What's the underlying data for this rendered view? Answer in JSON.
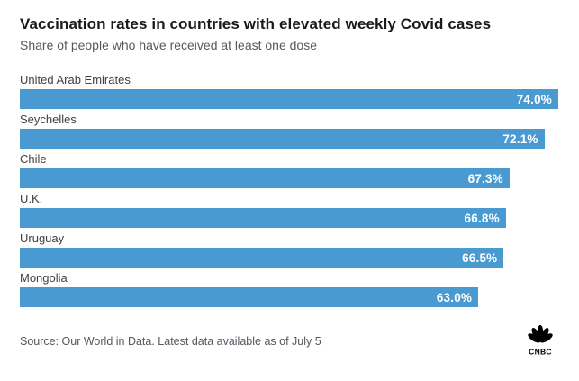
{
  "header": {
    "title": "Vaccination rates in countries with elevated weekly Covid cases",
    "subtitle": "Share of people who have received at least one dose"
  },
  "footer": {
    "source": "Source: Our World in Data. Latest data available as of July 5",
    "logo_text": "CNBC"
  },
  "colors": {
    "bar": "#4a9ad2",
    "title": "#1a1a1a",
    "subtitle": "#55595e",
    "country_label": "#414042",
    "value_label": "#ffffff",
    "logo": "#000000"
  },
  "chart_data": {
    "type": "bar",
    "orientation": "horizontal",
    "title": "Vaccination rates in countries with elevated weekly Covid cases",
    "subtitle": "Share of people who have received at least one dose",
    "categories": [
      "United Arab Emirates",
      "Seychelles",
      "Chile",
      "U.K.",
      "Uruguay",
      "Mongolia"
    ],
    "values": [
      74.0,
      72.1,
      67.3,
      66.8,
      66.5,
      63.0
    ],
    "value_labels": [
      "74.0%",
      "72.1%",
      "67.3%",
      "66.8%",
      "66.5%",
      "63.0%"
    ],
    "xlim": [
      0,
      74.0
    ],
    "xlabel": "",
    "ylabel": "",
    "grid": false,
    "legend": "none",
    "value_label_position": "inside-end",
    "source": "Source: Our World in Data. Latest data available as of July 5"
  }
}
